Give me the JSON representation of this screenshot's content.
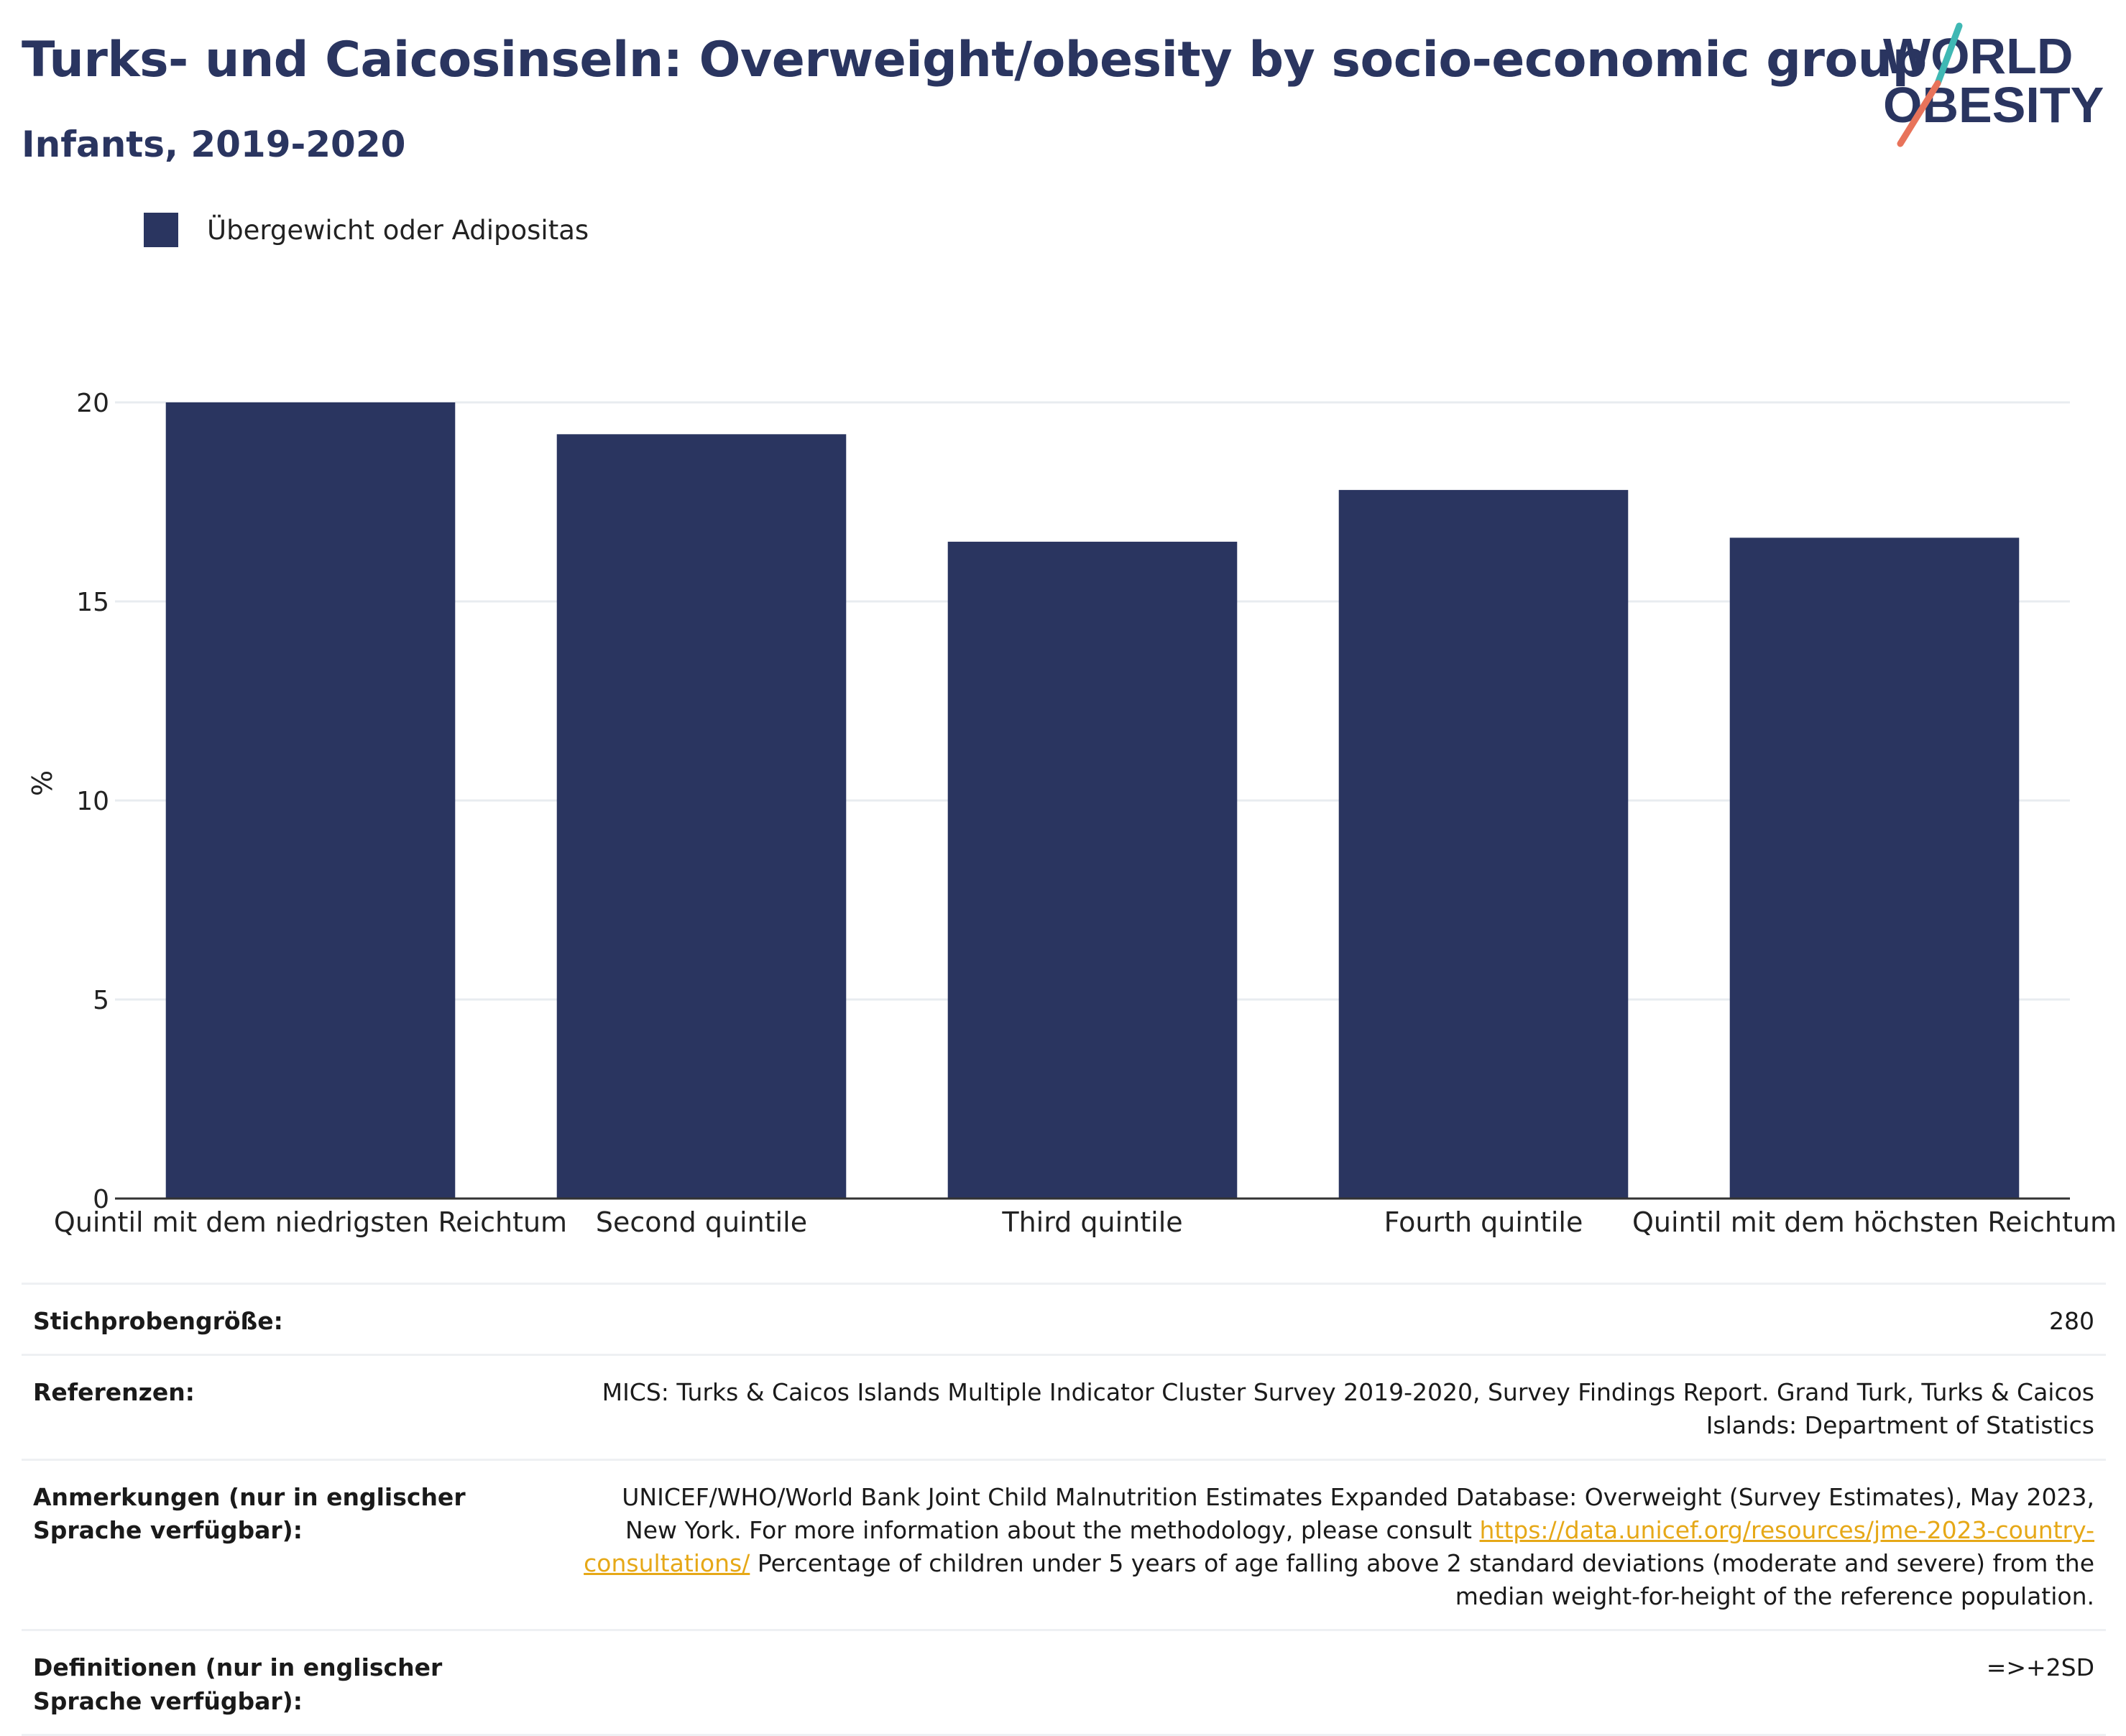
{
  "header": {
    "title": "Turks- und Caicosinseln: Overweight/obesity by socio-economic group",
    "subtitle": "Infants, 2019-2020"
  },
  "logo": {
    "line1": "WORLD",
    "line2": "OBESITY",
    "colors": {
      "text": "#2a3560",
      "teal": "#3fb8b4",
      "coral": "#e8735a"
    }
  },
  "colors": {
    "bar": "#2a3560",
    "grid": "#e8ecf0",
    "axis": "#333333",
    "link": "#e6a817"
  },
  "chart_data": {
    "type": "bar",
    "categories": [
      "Quintil mit dem niedrigsten Reichtum",
      "Second quintile",
      "Third quintile",
      "Fourth quintile",
      "Quintil mit dem höchsten Reichtum"
    ],
    "series": [
      {
        "name": "Übergewicht oder Adipositas",
        "values": [
          20.0,
          19.2,
          16.5,
          17.8,
          16.6
        ]
      }
    ],
    "ylabel": "%",
    "ylim": [
      0,
      20
    ],
    "yticks": [
      0,
      5,
      10,
      15,
      20
    ],
    "grid": true,
    "legend": "top-left"
  },
  "info": {
    "sample_label": "Stichprobengröße:",
    "sample_value": "280",
    "refs_label": "Referenzen:",
    "refs_value": "MICS: Turks & Caicos Islands Multiple Indicator Cluster Survey 2019-2020, Survey Findings Report. Grand Turk, Turks & Caicos Islands: Department of Statistics",
    "notes_label": "Anmerkungen (nur in englischer Sprache verfügbar):",
    "notes_text1": "UNICEF/WHO/World Bank Joint Child Malnutrition Estimates Expanded Database: Overweight (Survey Estimates), May 2023, New York. For more information about the methodology, please consult",
    "notes_link": "https://data.unicef.org/resources/jme-2023-country-consultations/",
    "notes_text2": "Percentage of children under 5 years of age falling above 2 standard deviations (moderate and severe) from the median weight-for-height of the reference population.",
    "defs_label": "Definitionen (nur in englischer Sprache verfügbar):",
    "defs_value": "=>+2SD"
  }
}
